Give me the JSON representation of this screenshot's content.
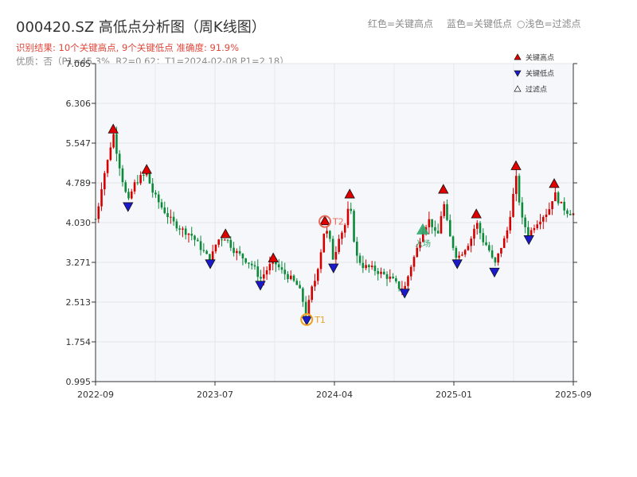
{
  "header": {
    "title": "000420.SZ 高低点分析图（周K线图）",
    "result_line": "识别结果: 10个关键高点, 9个关键低点  准确度: 91.9%",
    "quality_line": "优质：否（P1=45.3%, R2=0.62；T1=2024-02-08 P1=2.18）",
    "legend_red": "红色=关键高点",
    "legend_blue": "蓝色=关键低点",
    "legend_light": "浅色=过滤点"
  },
  "colors": {
    "up": "#d40000",
    "down": "#0b8a3a",
    "high_marker": "#e00000",
    "low_marker": "#1a1acc",
    "filtered_marker": "#2ea66a",
    "t1": "#f0a020",
    "t2": "#e86a5a",
    "plot_bg": "#f5f7fa"
  },
  "chart_data": {
    "type": "candlestick",
    "x_ticks": [
      "2022-09",
      "2023-07",
      "2024-04",
      "2025-01",
      "2025-09"
    ],
    "x_tick_positions": [
      0,
      0.25,
      0.5,
      0.75,
      1.0
    ],
    "y_ticks": [
      "0.995",
      "1.754",
      "2.513",
      "3.271",
      "4.030",
      "4.789",
      "5.547",
      "6.306",
      "7.065"
    ],
    "ylim": [
      0.995,
      7.065
    ],
    "grid": true,
    "legend": {
      "position": "top-right",
      "items": [
        {
          "label": "关键高点",
          "marker": "high"
        },
        {
          "label": "关键低点",
          "marker": "low"
        },
        {
          "label": "过滤点",
          "marker": "filtered"
        }
      ]
    },
    "key_highs": [
      {
        "t": 0.037,
        "price": 5.8
      },
      {
        "t": 0.107,
        "price": 5.03
      },
      {
        "t": 0.272,
        "price": 3.8
      },
      {
        "t": 0.372,
        "price": 3.34
      },
      {
        "t": 0.532,
        "price": 4.56
      },
      {
        "t": 0.728,
        "price": 4.65
      },
      {
        "t": 0.797,
        "price": 4.18
      },
      {
        "t": 0.88,
        "price": 5.1
      },
      {
        "t": 0.96,
        "price": 4.76
      },
      {
        "t": 0.48,
        "price": 4.05
      }
    ],
    "key_lows": [
      {
        "t": 0.068,
        "price": 4.35
      },
      {
        "t": 0.24,
        "price": 3.26
      },
      {
        "t": 0.345,
        "price": 2.85
      },
      {
        "t": 0.442,
        "price": 2.18
      },
      {
        "t": 0.498,
        "price": 3.18
      },
      {
        "t": 0.647,
        "price": 2.7
      },
      {
        "t": 0.757,
        "price": 3.26
      },
      {
        "t": 0.835,
        "price": 3.1
      },
      {
        "t": 0.907,
        "price": 3.72
      }
    ],
    "filtered_points": [
      {
        "t": 0.685,
        "price": 3.88,
        "label": "入场"
      }
    ],
    "annotations": [
      {
        "label": "T1",
        "t": 0.442,
        "price": 2.18
      },
      {
        "label": "T2",
        "t": 0.48,
        "price": 4.05
      }
    ],
    "price_path": [
      [
        0.0,
        4.1
      ],
      [
        0.005,
        4.3
      ],
      [
        0.015,
        4.85
      ],
      [
        0.025,
        5.2
      ],
      [
        0.037,
        5.75
      ],
      [
        0.045,
        5.35
      ],
      [
        0.055,
        4.9
      ],
      [
        0.068,
        4.4
      ],
      [
        0.08,
        4.75
      ],
      [
        0.095,
        4.9
      ],
      [
        0.107,
        4.95
      ],
      [
        0.12,
        4.6
      ],
      [
        0.14,
        4.3
      ],
      [
        0.16,
        4.05
      ],
      [
        0.18,
        3.9
      ],
      [
        0.2,
        3.8
      ],
      [
        0.22,
        3.55
      ],
      [
        0.24,
        3.3
      ],
      [
        0.255,
        3.7
      ],
      [
        0.272,
        3.75
      ],
      [
        0.29,
        3.5
      ],
      [
        0.31,
        3.35
      ],
      [
        0.33,
        3.2
      ],
      [
        0.345,
        2.95
      ],
      [
        0.36,
        3.15
      ],
      [
        0.372,
        3.3
      ],
      [
        0.39,
        3.1
      ],
      [
        0.41,
        2.95
      ],
      [
        0.425,
        2.8
      ],
      [
        0.435,
        2.5
      ],
      [
        0.442,
        2.25
      ],
      [
        0.45,
        2.7
      ],
      [
        0.46,
        2.95
      ],
      [
        0.47,
        3.4
      ],
      [
        0.48,
        3.95
      ],
      [
        0.49,
        3.7
      ],
      [
        0.498,
        3.3
      ],
      [
        0.51,
        3.8
      ],
      [
        0.52,
        3.9
      ],
      [
        0.532,
        4.4
      ],
      [
        0.545,
        3.4
      ],
      [
        0.56,
        3.2
      ],
      [
        0.58,
        3.15
      ],
      [
        0.6,
        3.05
      ],
      [
        0.62,
        2.95
      ],
      [
        0.635,
        2.8
      ],
      [
        0.647,
        2.78
      ],
      [
        0.66,
        3.2
      ],
      [
        0.672,
        3.5
      ],
      [
        0.685,
        3.9
      ],
      [
        0.7,
        4.1
      ],
      [
        0.715,
        3.7
      ],
      [
        0.728,
        4.45
      ],
      [
        0.74,
        3.8
      ],
      [
        0.757,
        3.35
      ],
      [
        0.77,
        3.5
      ],
      [
        0.785,
        3.7
      ],
      [
        0.797,
        4.05
      ],
      [
        0.81,
        3.7
      ],
      [
        0.822,
        3.55
      ],
      [
        0.835,
        3.2
      ],
      [
        0.848,
        3.55
      ],
      [
        0.86,
        3.8
      ],
      [
        0.87,
        4.3
      ],
      [
        0.88,
        4.9
      ],
      [
        0.892,
        4.1
      ],
      [
        0.907,
        3.8
      ],
      [
        0.92,
        4.0
      ],
      [
        0.935,
        4.15
      ],
      [
        0.948,
        4.25
      ],
      [
        0.96,
        4.6
      ],
      [
        0.972,
        4.4
      ],
      [
        0.985,
        4.25
      ],
      [
        1.0,
        4.2
      ]
    ]
  }
}
